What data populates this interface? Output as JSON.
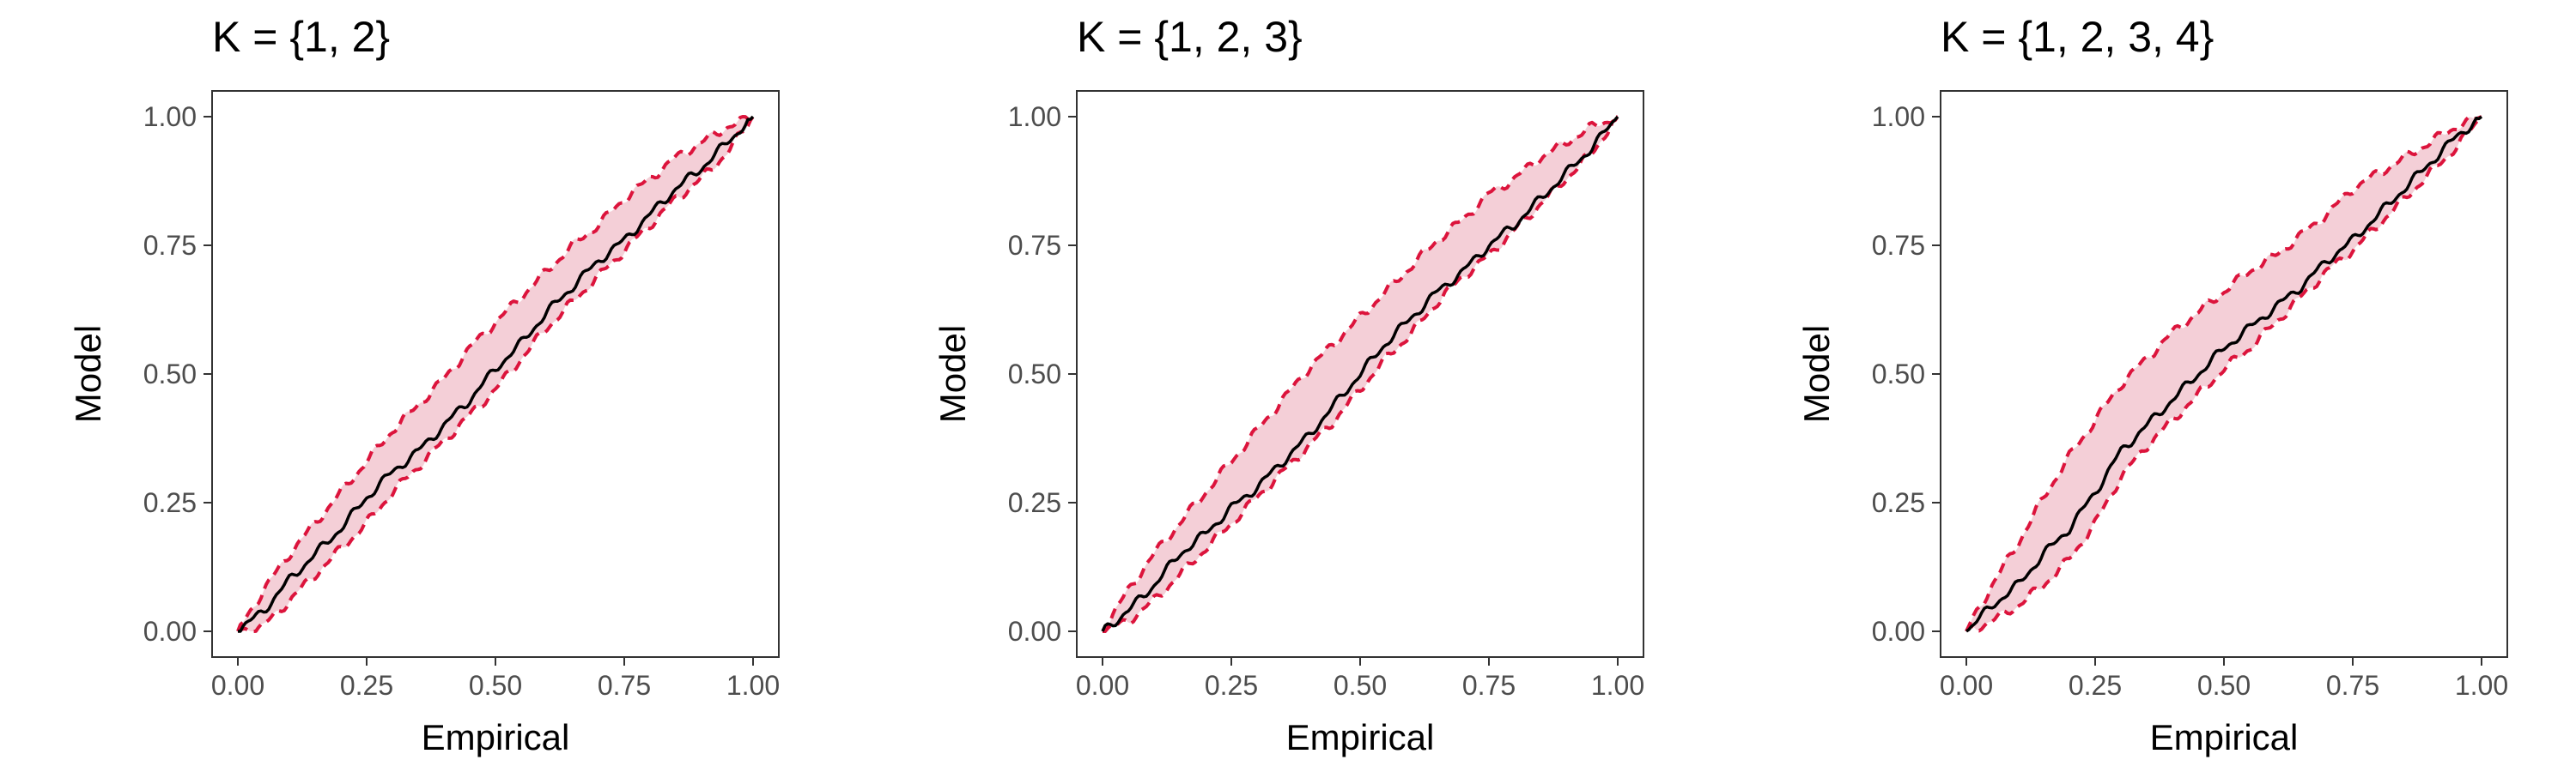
{
  "chart_data": [
    {
      "type": "line",
      "title": "K = {1, 2}",
      "xlabel": "Empirical",
      "ylabel": "Model",
      "xlim": [
        0,
        1
      ],
      "ylim": [
        0,
        1
      ],
      "xticks": [
        "0.00",
        "0.25",
        "0.50",
        "0.75",
        "1.00"
      ],
      "yticks": [
        "0.00",
        "0.25",
        "0.50",
        "0.75",
        "1.00"
      ],
      "grid": false,
      "legend": "none",
      "x": [
        0,
        0.05,
        0.1,
        0.15,
        0.2,
        0.25,
        0.3,
        0.35,
        0.4,
        0.45,
        0.5,
        0.55,
        0.6,
        0.65,
        0.7,
        0.75,
        0.8,
        0.85,
        0.9,
        0.95,
        1
      ],
      "series": [
        {
          "role": "estimate",
          "color": "#000000",
          "values": [
            0,
            0.04,
            0.1,
            0.15,
            0.2,
            0.26,
            0.31,
            0.35,
            0.4,
            0.45,
            0.51,
            0.56,
            0.62,
            0.67,
            0.72,
            0.76,
            0.81,
            0.86,
            0.9,
            0.95,
            1
          ]
        },
        {
          "role": "upper-band",
          "color": "#dc143c",
          "values": [
            0,
            0.08,
            0.15,
            0.21,
            0.27,
            0.33,
            0.39,
            0.44,
            0.49,
            0.55,
            0.6,
            0.65,
            0.7,
            0.75,
            0.79,
            0.84,
            0.88,
            0.92,
            0.95,
            0.98,
            1
          ]
        },
        {
          "role": "lower-band",
          "color": "#dc143c",
          "values": [
            0,
            0.01,
            0.06,
            0.11,
            0.16,
            0.21,
            0.27,
            0.32,
            0.37,
            0.42,
            0.47,
            0.53,
            0.59,
            0.64,
            0.69,
            0.74,
            0.79,
            0.84,
            0.88,
            0.93,
            1
          ]
        }
      ]
    },
    {
      "type": "line",
      "title": "K = {1, 2, 3}",
      "xlabel": "Empirical",
      "ylabel": "Model",
      "xlim": [
        0,
        1
      ],
      "ylim": [
        0,
        1
      ],
      "xticks": [
        "0.00",
        "0.25",
        "0.50",
        "0.75",
        "1.00"
      ],
      "yticks": [
        "0.00",
        "0.25",
        "0.50",
        "0.75",
        "1.00"
      ],
      "grid": false,
      "legend": "none",
      "x": [
        0,
        0.05,
        0.1,
        0.15,
        0.2,
        0.25,
        0.3,
        0.35,
        0.4,
        0.45,
        0.5,
        0.55,
        0.6,
        0.65,
        0.7,
        0.75,
        0.8,
        0.85,
        0.9,
        0.95,
        1
      ],
      "series": [
        {
          "role": "estimate",
          "color": "#000000",
          "values": [
            0,
            0.04,
            0.09,
            0.15,
            0.19,
            0.24,
            0.28,
            0.33,
            0.38,
            0.44,
            0.5,
            0.56,
            0.61,
            0.66,
            0.7,
            0.75,
            0.79,
            0.84,
            0.89,
            0.94,
            1
          ]
        },
        {
          "role": "upper-band",
          "color": "#dc143c",
          "values": [
            0,
            0.08,
            0.15,
            0.21,
            0.27,
            0.33,
            0.39,
            0.45,
            0.51,
            0.56,
            0.61,
            0.66,
            0.71,
            0.76,
            0.8,
            0.85,
            0.88,
            0.92,
            0.95,
            0.98,
            1
          ]
        },
        {
          "role": "lower-band",
          "color": "#dc143c",
          "values": [
            0,
            0.02,
            0.06,
            0.11,
            0.16,
            0.21,
            0.26,
            0.31,
            0.36,
            0.41,
            0.47,
            0.53,
            0.58,
            0.64,
            0.69,
            0.73,
            0.78,
            0.83,
            0.88,
            0.93,
            1
          ]
        }
      ]
    },
    {
      "type": "line",
      "title": "K = {1, 2, 3, 4}",
      "xlabel": "Empirical",
      "ylabel": "Model",
      "xlim": [
        0,
        1
      ],
      "ylim": [
        0,
        1
      ],
      "xticks": [
        "0.00",
        "0.25",
        "0.50",
        "0.75",
        "1.00"
      ],
      "yticks": [
        "0.00",
        "0.25",
        "0.50",
        "0.75",
        "1.00"
      ],
      "grid": false,
      "legend": "none",
      "x": [
        0,
        0.05,
        0.1,
        0.15,
        0.2,
        0.25,
        0.3,
        0.35,
        0.4,
        0.45,
        0.5,
        0.55,
        0.6,
        0.65,
        0.7,
        0.75,
        0.8,
        0.85,
        0.9,
        0.95,
        1
      ],
      "series": [
        {
          "role": "estimate",
          "color": "#000000",
          "values": [
            0,
            0.05,
            0.09,
            0.15,
            0.2,
            0.27,
            0.35,
            0.4,
            0.45,
            0.5,
            0.55,
            0.59,
            0.63,
            0.67,
            0.72,
            0.76,
            0.81,
            0.86,
            0.91,
            0.96,
            1
          ]
        },
        {
          "role": "upper-band",
          "color": "#dc143c",
          "values": [
            0,
            0.09,
            0.17,
            0.26,
            0.34,
            0.41,
            0.48,
            0.53,
            0.58,
            0.62,
            0.66,
            0.7,
            0.73,
            0.77,
            0.81,
            0.86,
            0.89,
            0.92,
            0.95,
            0.98,
            1
          ]
        },
        {
          "role": "lower-band",
          "color": "#dc143c",
          "values": [
            0,
            0.02,
            0.05,
            0.09,
            0.14,
            0.21,
            0.3,
            0.36,
            0.41,
            0.46,
            0.51,
            0.55,
            0.6,
            0.65,
            0.7,
            0.74,
            0.79,
            0.84,
            0.89,
            0.94,
            1
          ]
        }
      ]
    }
  ],
  "colors": {
    "band_fill": "#f4cfd7",
    "band_edge": "#dc143c",
    "estimate_line": "#000000",
    "panel_border": "#333333",
    "tick_text": "#4d4d4d"
  }
}
